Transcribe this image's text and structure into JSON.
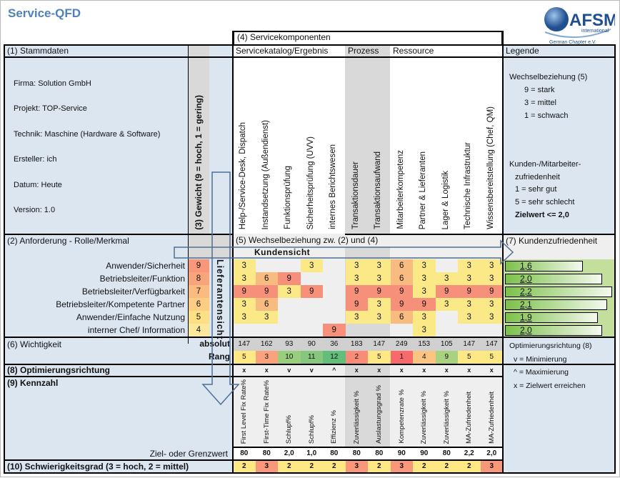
{
  "title": "Service-QFD",
  "logo": {
    "text": "AFSM",
    "sub": "international",
    "chapter": "German Chapter e.V."
  },
  "section4": "(4) Servicekomponenten",
  "stammdaten": {
    "header": "(1) Stammdaten",
    "lines": [
      "Firma: Solution GmbH",
      "Projekt: TOP-Service",
      "Technik: Maschine (Hardware & Software)",
      "Ersteller: ich",
      "Datum: Heute",
      "Version: 1.0"
    ]
  },
  "weight_header": "(3) Gewicht (9 = hoch, 1 = gering)",
  "groups": [
    {
      "label": "Servicekatalog/Ergebnis"
    },
    {
      "label": "Prozess"
    },
    {
      "label": "Ressource"
    }
  ],
  "components": [
    "Help-/Service-Desk, Dispatch",
    "Instandsetzung (Außendienst)",
    "Funktionsprüfung",
    "Sicherheitsprüfung (UVV)",
    "internes  Berichtswesen",
    "Transaktionsdauer",
    "Transaktionsaufwand",
    "Mitarbeiterkompetenz",
    "Partner & Lieferanten",
    "Lager & Logistik",
    "Technische Infrastruktur",
    "Wissensbereitstellung (Chef, QM)"
  ],
  "legend": {
    "header": "Legende",
    "wb_title": "Wechselbeziehung (5)",
    "wb_items": [
      "9 = stark",
      "3 = mittel",
      "1 = schwach"
    ],
    "kz_title1": "Kunden-/Mitarbeiter-",
    "kz_title2": "zufriedenheit",
    "kz_items": [
      "1 = sehr gut",
      "5 = sehr schlecht"
    ],
    "kz_target": "Zielwert <= 2,0",
    "opt_title": "Optimierungsrichtung (8)",
    "opt_items": [
      "v = Minimierung",
      "^ = Maximierung",
      "x = Zielwert erreichen"
    ]
  },
  "section2": "(2) Anforderung - Rolle/Merkmal",
  "section5": "(5) Wechselbeziehung zw. (2) und (4)",
  "kundensicht": "Kundensicht",
  "lieferantensicht": "Lieferantensicht",
  "section7": "(7) Kundenzufriedenheit",
  "requirements": [
    {
      "label": "Anwender/Sicherheit",
      "weight": 9,
      "values": [
        3,
        null,
        null,
        3,
        null,
        3,
        3,
        6,
        3,
        null,
        3,
        3
      ],
      "satisfaction": "1,6",
      "sat_value": 1.6
    },
    {
      "label": "Betriebsleiter/Funktion",
      "weight": 8,
      "values": [
        3,
        6,
        9,
        null,
        null,
        3,
        3,
        6,
        3,
        3,
        3,
        3
      ],
      "satisfaction": "2,0",
      "sat_value": 2.0
    },
    {
      "label": "Betriebsleiter/Verfügbarkeit",
      "weight": 7,
      "values": [
        9,
        9,
        3,
        9,
        null,
        9,
        9,
        9,
        3,
        9,
        9,
        9
      ],
      "satisfaction": "2,2",
      "sat_value": 2.2
    },
    {
      "label": "Betriebsleiter/Kompetente Partner",
      "weight": 6,
      "values": [
        3,
        6,
        null,
        null,
        null,
        9,
        3,
        9,
        9,
        3,
        3,
        3
      ],
      "satisfaction": "2,1",
      "sat_value": 2.1
    },
    {
      "label": "Anwender/Einfache Nutzung",
      "weight": 5,
      "values": [
        3,
        3,
        null,
        null,
        null,
        3,
        3,
        6,
        3,
        null,
        3,
        3
      ],
      "satisfaction": "1,9",
      "sat_value": 1.9
    },
    {
      "label": "interner Chef/ Information",
      "weight": 4,
      "values": [
        null,
        null,
        null,
        null,
        9,
        null,
        null,
        null,
        3,
        null,
        null,
        null
      ],
      "satisfaction": "2,0",
      "sat_value": 2.0
    }
  ],
  "section6": "(6) Wichtigkeit",
  "absolut_label": "absolut",
  "rang_label": "Rang",
  "absolut": [
    "147",
    "162",
    "93",
    "90",
    "36",
    "183",
    "147",
    "249",
    "153",
    "105",
    "147",
    "147"
  ],
  "rang": [
    "5",
    "3",
    "10",
    "11",
    "12",
    "2",
    "5",
    "1",
    "4",
    "9",
    "5",
    "5"
  ],
  "section8": "(8) Optimierungsrichtung",
  "optimierung": [
    "x",
    "x",
    "v",
    "v",
    "^",
    "x",
    "x",
    "x",
    "x",
    "x",
    "x",
    "x"
  ],
  "section9": "(9) Kennzahl",
  "kennzahlen": [
    "First Level Fix Rate%",
    "First-Time Fix Rate%",
    "Schlupf%",
    "Schlupf%",
    "Effizienz %",
    "Zuverlässigkeit %",
    "Auslastungsgrad %",
    "Kompetenzrate %",
    "Zuverlässigkeit %",
    "Zuverlässigkeit %",
    "MA-Zufriedenheit",
    "MA-Zufriedenheit"
  ],
  "ziel_label": "Ziel- oder Grenzwert",
  "zielwerte": [
    "80",
    "80",
    "2,0",
    "1,0",
    "80",
    "80",
    "80",
    "90",
    "90",
    "80",
    "2,2",
    "2,0"
  ],
  "section10": "(10) Schwierigkeitsgrad (3 = hoch, 2 = mittel)",
  "schwierigkeit": [
    "2",
    "3",
    "2",
    "2",
    "2",
    "3",
    "2",
    "3",
    "2",
    "2",
    "2",
    "3"
  ],
  "colors": {
    "header_bg": "#dce6f1",
    "accent": "#4f81bd",
    "rel_3": "#fbe886",
    "rel_6": "#f8bb80",
    "rel_9": "#f6907a",
    "prozess_bg": "#d9d9d9",
    "empty_bg": "#efefef",
    "sat_row": "#c4df9b"
  }
}
